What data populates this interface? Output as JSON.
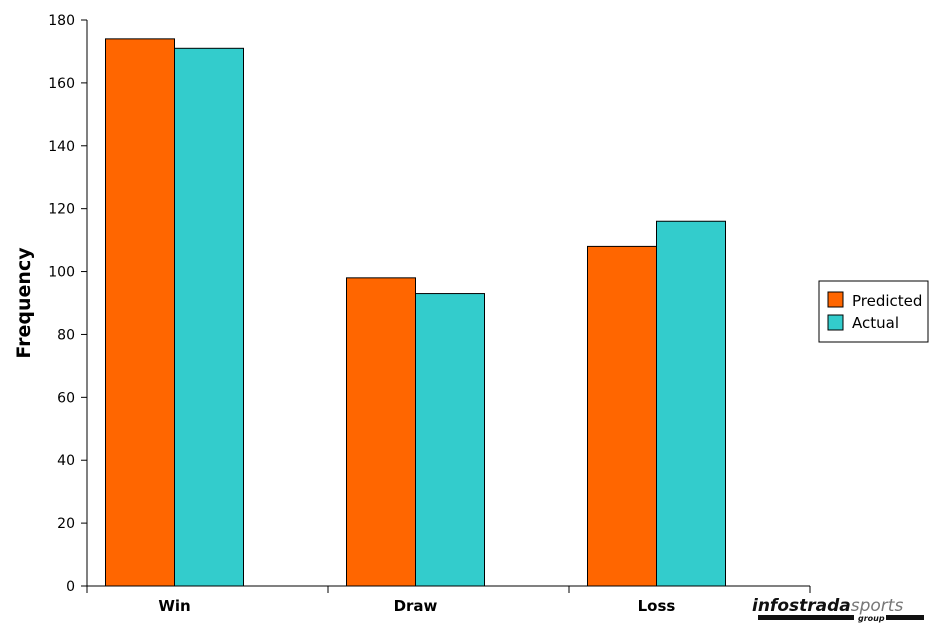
{
  "chart_data": {
    "type": "bar",
    "categories": [
      "Win",
      "Draw",
      "Loss"
    ],
    "series": [
      {
        "name": "Predicted",
        "values": [
          174,
          98,
          108
        ],
        "color": "#ff6600"
      },
      {
        "name": "Actual",
        "values": [
          171,
          93,
          116
        ],
        "color": "#33cccc"
      }
    ],
    "title": "",
    "xlabel": "",
    "ylabel": "Frequency",
    "ylim": [
      0,
      180
    ],
    "yticks": [
      0,
      20,
      40,
      60,
      80,
      100,
      120,
      140,
      160,
      180
    ],
    "grid": false,
    "legend_position": "right"
  },
  "logo": {
    "word_main": "infostrada",
    "word_accent": "sports",
    "word_sub": "group"
  }
}
